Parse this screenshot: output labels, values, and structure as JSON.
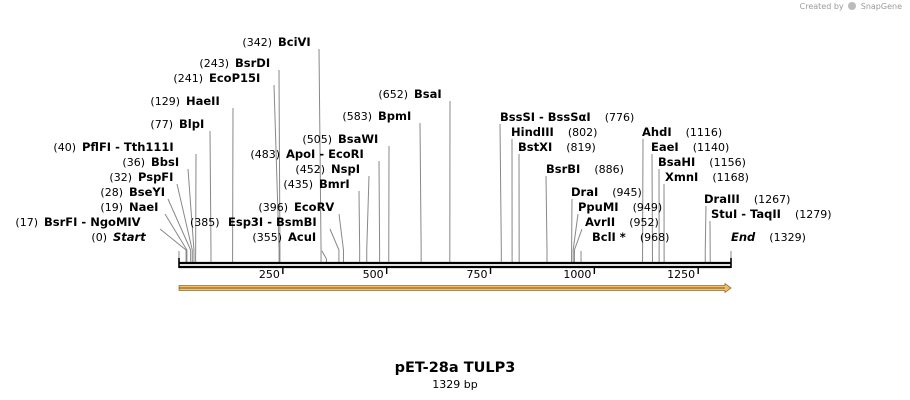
{
  "credit": {
    "text": "Created by",
    "brand": "SnapGene"
  },
  "plasmid": {
    "name": "pET-28a TULP3",
    "length_label": "1329 bp",
    "length": 1329
  },
  "ticks": [
    {
      "pos": 250,
      "label": "250"
    },
    {
      "pos": 500,
      "label": "500"
    },
    {
      "pos": 750,
      "label": "750"
    },
    {
      "pos": 1000,
      "label": "1000"
    },
    {
      "pos": 1250,
      "label": "1250"
    }
  ],
  "sites": [
    {
      "id": "start",
      "pos": 0,
      "label": "Start",
      "num": "(0)",
      "italic": true
    },
    {
      "id": "bsrfi",
      "pos": 17,
      "label": "BsrFI  -  NgoMIV",
      "num": "(17)"
    },
    {
      "id": "naei",
      "pos": 19,
      "label": "NaeI",
      "num": "(19)"
    },
    {
      "id": "bseyi",
      "pos": 28,
      "label": "BseYI",
      "num": "(28)"
    },
    {
      "id": "pspfi",
      "pos": 32,
      "label": "PspFI",
      "num": "(32)"
    },
    {
      "id": "bbsi",
      "pos": 36,
      "label": "BbsI",
      "num": "(36)"
    },
    {
      "id": "pflfi",
      "pos": 40,
      "label": "PflFI  -  Tth111I",
      "num": "(40)"
    },
    {
      "id": "blpi",
      "pos": 77,
      "label": "BlpI",
      "num": "(77)"
    },
    {
      "id": "haeii",
      "pos": 129,
      "label": "HaeII",
      "num": "(129)"
    },
    {
      "id": "ecop15i",
      "pos": 241,
      "label": "EcoP15I",
      "num": "(241)"
    },
    {
      "id": "bsrdi",
      "pos": 243,
      "label": "BsrDI",
      "num": "(243)"
    },
    {
      "id": "bcivi",
      "pos": 342,
      "label": "BciVI",
      "num": "(342)"
    },
    {
      "id": "acui",
      "pos": 355,
      "label": "AcuI",
      "num": "(355)"
    },
    {
      "id": "esp3i",
      "pos": 385,
      "label": "Esp3I  -  BsmBI",
      "num": "(385)"
    },
    {
      "id": "ecorv",
      "pos": 396,
      "label": "EcoRV",
      "num": "(396)"
    },
    {
      "id": "bmri",
      "pos": 435,
      "label": "BmrI",
      "num": "(435)"
    },
    {
      "id": "nspi",
      "pos": 452,
      "label": "NspI",
      "num": "(452)"
    },
    {
      "id": "apoi",
      "pos": 483,
      "label": "ApoI  -  EcoRI",
      "num": "(483)"
    },
    {
      "id": "bsawi",
      "pos": 505,
      "label": "BsaWI",
      "num": "(505)"
    },
    {
      "id": "bpmi",
      "pos": 583,
      "label": "BpmI",
      "num": "(583)"
    },
    {
      "id": "bsai",
      "pos": 652,
      "label": "BsaI",
      "num": "(652)"
    },
    {
      "id": "bsssi",
      "pos": 776,
      "label": "BssSI  -  BssSαI",
      "num": "(776)"
    },
    {
      "id": "hindiii",
      "pos": 802,
      "label": "HindIII",
      "num": "(802)"
    },
    {
      "id": "bstxi",
      "pos": 819,
      "label": "BstXI",
      "num": "(819)"
    },
    {
      "id": "bsrbi",
      "pos": 886,
      "label": "BsrBI",
      "num": "(886)"
    },
    {
      "id": "drai",
      "pos": 945,
      "label": "DraI",
      "num": "(945)"
    },
    {
      "id": "ppumi",
      "pos": 949,
      "label": "PpuMI",
      "num": "(949)"
    },
    {
      "id": "avrii",
      "pos": 952,
      "label": "AvrII",
      "num": "(952)"
    },
    {
      "id": "bcli",
      "pos": 968,
      "label": "BclI *",
      "num": "(968)"
    },
    {
      "id": "ahdi",
      "pos": 1116,
      "label": "AhdI",
      "num": "(1116)"
    },
    {
      "id": "eaei",
      "pos": 1140,
      "label": "EaeI",
      "num": "(1140)"
    },
    {
      "id": "bsahi",
      "pos": 1156,
      "label": "BsaHI",
      "num": "(1156)"
    },
    {
      "id": "xmni",
      "pos": 1168,
      "label": "XmnI",
      "num": "(1168)"
    },
    {
      "id": "draiii",
      "pos": 1267,
      "label": "DraIII",
      "num": "(1267)"
    },
    {
      "id": "stui",
      "pos": 1279,
      "label": "StuI  -  TaqII",
      "num": "(1279)"
    },
    {
      "id": "end",
      "pos": 1329,
      "label": "End",
      "num": "(1329)",
      "italic": true
    }
  ],
  "feature_arrow": {
    "start": 0,
    "end": 1329,
    "fill": "#f6b44e",
    "stroke": "#8a6d3b"
  }
}
